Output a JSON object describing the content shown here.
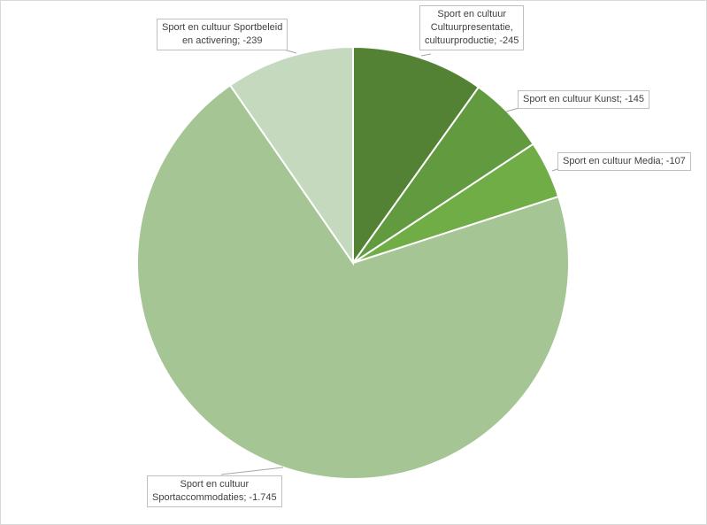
{
  "chart_data": {
    "type": "pie",
    "title": "",
    "legend": "none",
    "start_angle_deg": 0,
    "direction": "clockwise",
    "slices": [
      {
        "category": "Sport en cultuur Cultuurpresentatie, cultuurproductie",
        "value": -245,
        "color": "#548235",
        "label_lines": [
          "Sport en cultuur",
          "Cultuurpresentatie,",
          "cultuurproductie; -245"
        ]
      },
      {
        "category": "Sport en cultuur Kunst",
        "value": -145,
        "color": "#629b3f",
        "label_lines": [
          "Sport en cultuur Kunst; -145"
        ]
      },
      {
        "category": "Sport en cultuur Media",
        "value": -107,
        "color": "#70ad47",
        "label_lines": [
          "Sport en cultuur Media; -107"
        ]
      },
      {
        "category": "Sport en cultuur Sportaccommodaties",
        "value": -1745,
        "color": "#a5c594",
        "label_lines": [
          "Sport en cultuur",
          "Sportaccommodaties; -1.745"
        ]
      },
      {
        "category": "Sport en cultuur Sportbeleid en activering",
        "value": -239,
        "color": "#c5d9be",
        "label_lines": [
          "Sport en cultuur Sportbeleid",
          "en activering; -239"
        ]
      }
    ]
  }
}
